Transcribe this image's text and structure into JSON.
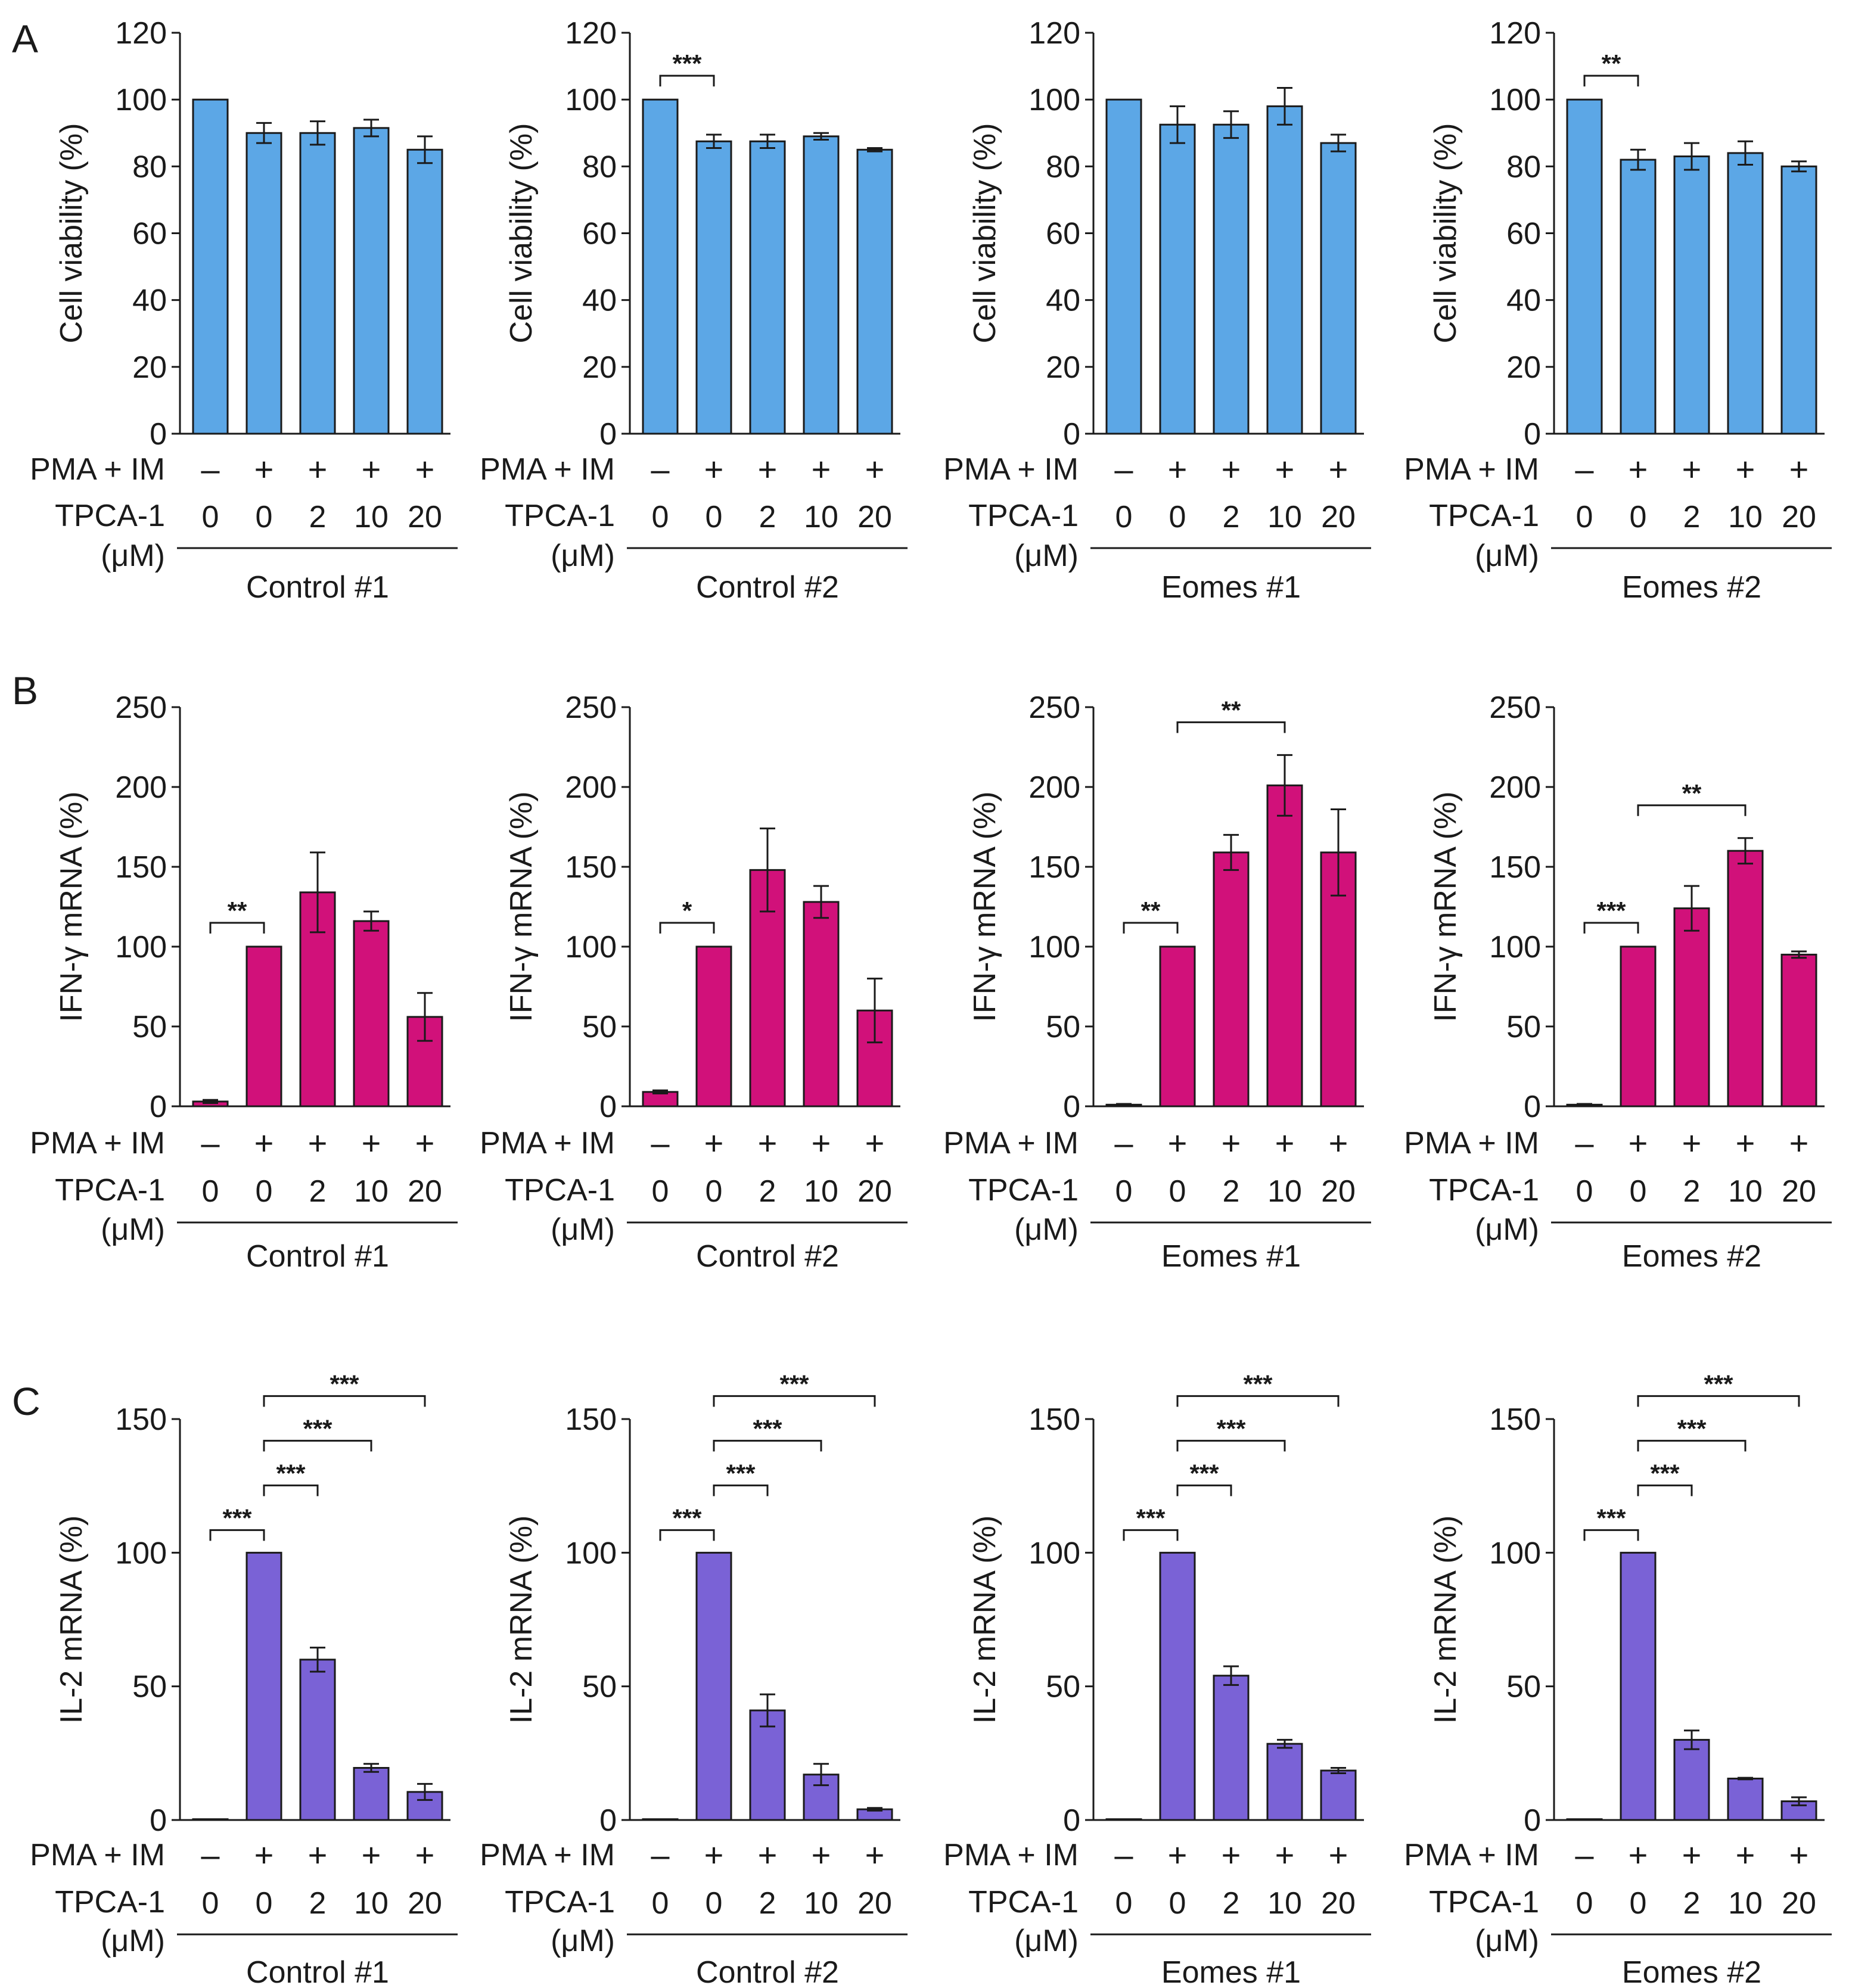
{
  "panel_letters": [
    "A",
    "B",
    "C"
  ],
  "row_labels": {
    "pma": "PMA + IM",
    "tpca": "TPCA-1",
    "unit": "(μM)"
  },
  "treatment": {
    "pma": [
      "–",
      "+",
      "+",
      "+",
      "+"
    ],
    "tpca": [
      "0",
      "0",
      "2",
      "10",
      "20"
    ]
  },
  "groups": [
    "Control #1",
    "Control #2",
    "Eomes #1",
    "Eomes #2"
  ],
  "colors": {
    "A": "#5ca7e6",
    "B": "#d1117a",
    "C": "#7a62d6"
  },
  "chart_data": [
    {
      "type": "bar",
      "panel": "A",
      "group": "Control #1",
      "ylabel": "Cell viability (%)",
      "ylim": [
        0,
        120
      ],
      "yticks": [
        0,
        20,
        40,
        60,
        80,
        100,
        120
      ],
      "categories": [
        "0",
        "0",
        "2",
        "10",
        "20"
      ],
      "values": [
        100,
        90,
        90,
        91.5,
        85
      ],
      "errors": [
        0,
        3,
        3.5,
        2.5,
        4
      ],
      "significance": []
    },
    {
      "type": "bar",
      "panel": "A",
      "group": "Control #2",
      "ylabel": "Cell viability (%)",
      "ylim": [
        0,
        120
      ],
      "yticks": [
        0,
        20,
        40,
        60,
        80,
        100,
        120
      ],
      "categories": [
        "0",
        "0",
        "2",
        "10",
        "20"
      ],
      "values": [
        100,
        87.5,
        87.5,
        89,
        85
      ],
      "errors": [
        0,
        2,
        2,
        1,
        0.5
      ],
      "significance": [
        {
          "from": 0,
          "to": 1,
          "level": 1,
          "label": "***"
        }
      ]
    },
    {
      "type": "bar",
      "panel": "A",
      "group": "Eomes #1",
      "ylabel": "Cell viability (%)",
      "ylim": [
        0,
        120
      ],
      "yticks": [
        0,
        20,
        40,
        60,
        80,
        100,
        120
      ],
      "categories": [
        "0",
        "0",
        "2",
        "10",
        "20"
      ],
      "values": [
        100,
        92.5,
        92.5,
        98,
        87
      ],
      "errors": [
        0,
        5.5,
        4,
        5.5,
        2.5
      ],
      "significance": []
    },
    {
      "type": "bar",
      "panel": "A",
      "group": "Eomes #2",
      "ylabel": "Cell viability (%)",
      "ylim": [
        0,
        120
      ],
      "yticks": [
        0,
        20,
        40,
        60,
        80,
        100,
        120
      ],
      "categories": [
        "0",
        "0",
        "2",
        "10",
        "20"
      ],
      "values": [
        100,
        82,
        83,
        84,
        80
      ],
      "errors": [
        0,
        3,
        4,
        3.5,
        1.5
      ],
      "significance": [
        {
          "from": 0,
          "to": 1,
          "level": 1,
          "label": "**"
        }
      ]
    },
    {
      "type": "bar",
      "panel": "B",
      "group": "Control #1",
      "ylabel": "IFN-γ mRNA (%)",
      "ylim": [
        0,
        250
      ],
      "yticks": [
        0,
        50,
        100,
        150,
        200,
        250
      ],
      "categories": [
        "0",
        "0",
        "2",
        "10",
        "20"
      ],
      "values": [
        3,
        100,
        134,
        116,
        56
      ],
      "errors": [
        1,
        0,
        25,
        6,
        15
      ],
      "significance": [
        {
          "from": 0,
          "to": 1,
          "level": 1,
          "label": "**"
        }
      ]
    },
    {
      "type": "bar",
      "panel": "B",
      "group": "Control #2",
      "ylabel": "IFN-γ mRNA (%)",
      "ylim": [
        0,
        250
      ],
      "yticks": [
        0,
        50,
        100,
        150,
        200,
        250
      ],
      "categories": [
        "0",
        "0",
        "2",
        "10",
        "20"
      ],
      "values": [
        9,
        100,
        148,
        128,
        60
      ],
      "errors": [
        1,
        0,
        26,
        10,
        20
      ],
      "significance": [
        {
          "from": 0,
          "to": 1,
          "level": 1,
          "label": "*"
        }
      ]
    },
    {
      "type": "bar",
      "panel": "B",
      "group": "Eomes #1",
      "ylabel": "IFN-γ mRNA (%)",
      "ylim": [
        0,
        250
      ],
      "yticks": [
        0,
        50,
        100,
        150,
        200,
        250
      ],
      "categories": [
        "0",
        "0",
        "2",
        "10",
        "20"
      ],
      "values": [
        1,
        100,
        159,
        201,
        159
      ],
      "errors": [
        0.5,
        0,
        11,
        19,
        27
      ],
      "significance": [
        {
          "from": 0,
          "to": 1,
          "level": 1,
          "label": "**"
        },
        {
          "from": 1,
          "to": 3,
          "level": 2,
          "label": "**"
        }
      ]
    },
    {
      "type": "bar",
      "panel": "B",
      "group": "Eomes #2",
      "ylabel": "IFN-γ mRNA (%)",
      "ylim": [
        0,
        250
      ],
      "yticks": [
        0,
        50,
        100,
        150,
        200,
        250
      ],
      "categories": [
        "0",
        "0",
        "2",
        "10",
        "20"
      ],
      "values": [
        1,
        100,
        124,
        160,
        95
      ],
      "errors": [
        0.5,
        0,
        14,
        8,
        2
      ],
      "significance": [
        {
          "from": 0,
          "to": 1,
          "level": 1,
          "label": "***"
        },
        {
          "from": 1,
          "to": 3,
          "level": 2,
          "label": "**"
        }
      ]
    },
    {
      "type": "bar",
      "panel": "C",
      "group": "Control #1",
      "ylabel": "IL-2 mRNA (%)",
      "ylim": [
        0,
        150
      ],
      "yticks": [
        0,
        50,
        100,
        150
      ],
      "categories": [
        "0",
        "0",
        "2",
        "10",
        "20"
      ],
      "values": [
        0.3,
        100,
        60,
        19.5,
        10.5
      ],
      "errors": [
        0,
        0,
        4.5,
        1.5,
        3
      ],
      "significance": [
        {
          "from": 0,
          "to": 1,
          "level": 1,
          "label": "***"
        },
        {
          "from": 1,
          "to": 2,
          "level": 2,
          "label": "***"
        },
        {
          "from": 1,
          "to": 3,
          "level": 3,
          "label": "***"
        },
        {
          "from": 1,
          "to": 4,
          "level": 4,
          "label": "***"
        }
      ]
    },
    {
      "type": "bar",
      "panel": "C",
      "group": "Control #2",
      "ylabel": "IL-2 mRNA (%)",
      "ylim": [
        0,
        150
      ],
      "yticks": [
        0,
        50,
        100,
        150
      ],
      "categories": [
        "0",
        "0",
        "2",
        "10",
        "20"
      ],
      "values": [
        0.3,
        100,
        41,
        17,
        4
      ],
      "errors": [
        0,
        0,
        6,
        4,
        0.5
      ],
      "significance": [
        {
          "from": 0,
          "to": 1,
          "level": 1,
          "label": "***"
        },
        {
          "from": 1,
          "to": 2,
          "level": 2,
          "label": "***"
        },
        {
          "from": 1,
          "to": 3,
          "level": 3,
          "label": "***"
        },
        {
          "from": 1,
          "to": 4,
          "level": 4,
          "label": "***"
        }
      ]
    },
    {
      "type": "bar",
      "panel": "C",
      "group": "Eomes #1",
      "ylabel": "IL-2 mRNA (%)",
      "ylim": [
        0,
        150
      ],
      "yticks": [
        0,
        50,
        100,
        150
      ],
      "categories": [
        "0",
        "0",
        "2",
        "10",
        "20"
      ],
      "values": [
        0.3,
        100,
        54,
        28.5,
        18.5
      ],
      "errors": [
        0,
        0,
        3.5,
        1.5,
        1
      ],
      "significance": [
        {
          "from": 0,
          "to": 1,
          "level": 1,
          "label": "***"
        },
        {
          "from": 1,
          "to": 2,
          "level": 2,
          "label": "***"
        },
        {
          "from": 1,
          "to": 3,
          "level": 3,
          "label": "***"
        },
        {
          "from": 1,
          "to": 4,
          "level": 4,
          "label": "***"
        }
      ]
    },
    {
      "type": "bar",
      "panel": "C",
      "group": "Eomes #2",
      "ylabel": "IL-2 mRNA (%)",
      "ylim": [
        0,
        150
      ],
      "yticks": [
        0,
        50,
        100,
        150
      ],
      "categories": [
        "0",
        "0",
        "2",
        "10",
        "20"
      ],
      "values": [
        0.3,
        100,
        30,
        15.5,
        7
      ],
      "errors": [
        0,
        0,
        3.5,
        0.3,
        1.5
      ],
      "significance": [
        {
          "from": 0,
          "to": 1,
          "level": 1,
          "label": "***"
        },
        {
          "from": 1,
          "to": 2,
          "level": 2,
          "label": "***"
        },
        {
          "from": 1,
          "to": 3,
          "level": 3,
          "label": "***"
        },
        {
          "from": 1,
          "to": 4,
          "level": 4,
          "label": "***"
        }
      ]
    }
  ]
}
